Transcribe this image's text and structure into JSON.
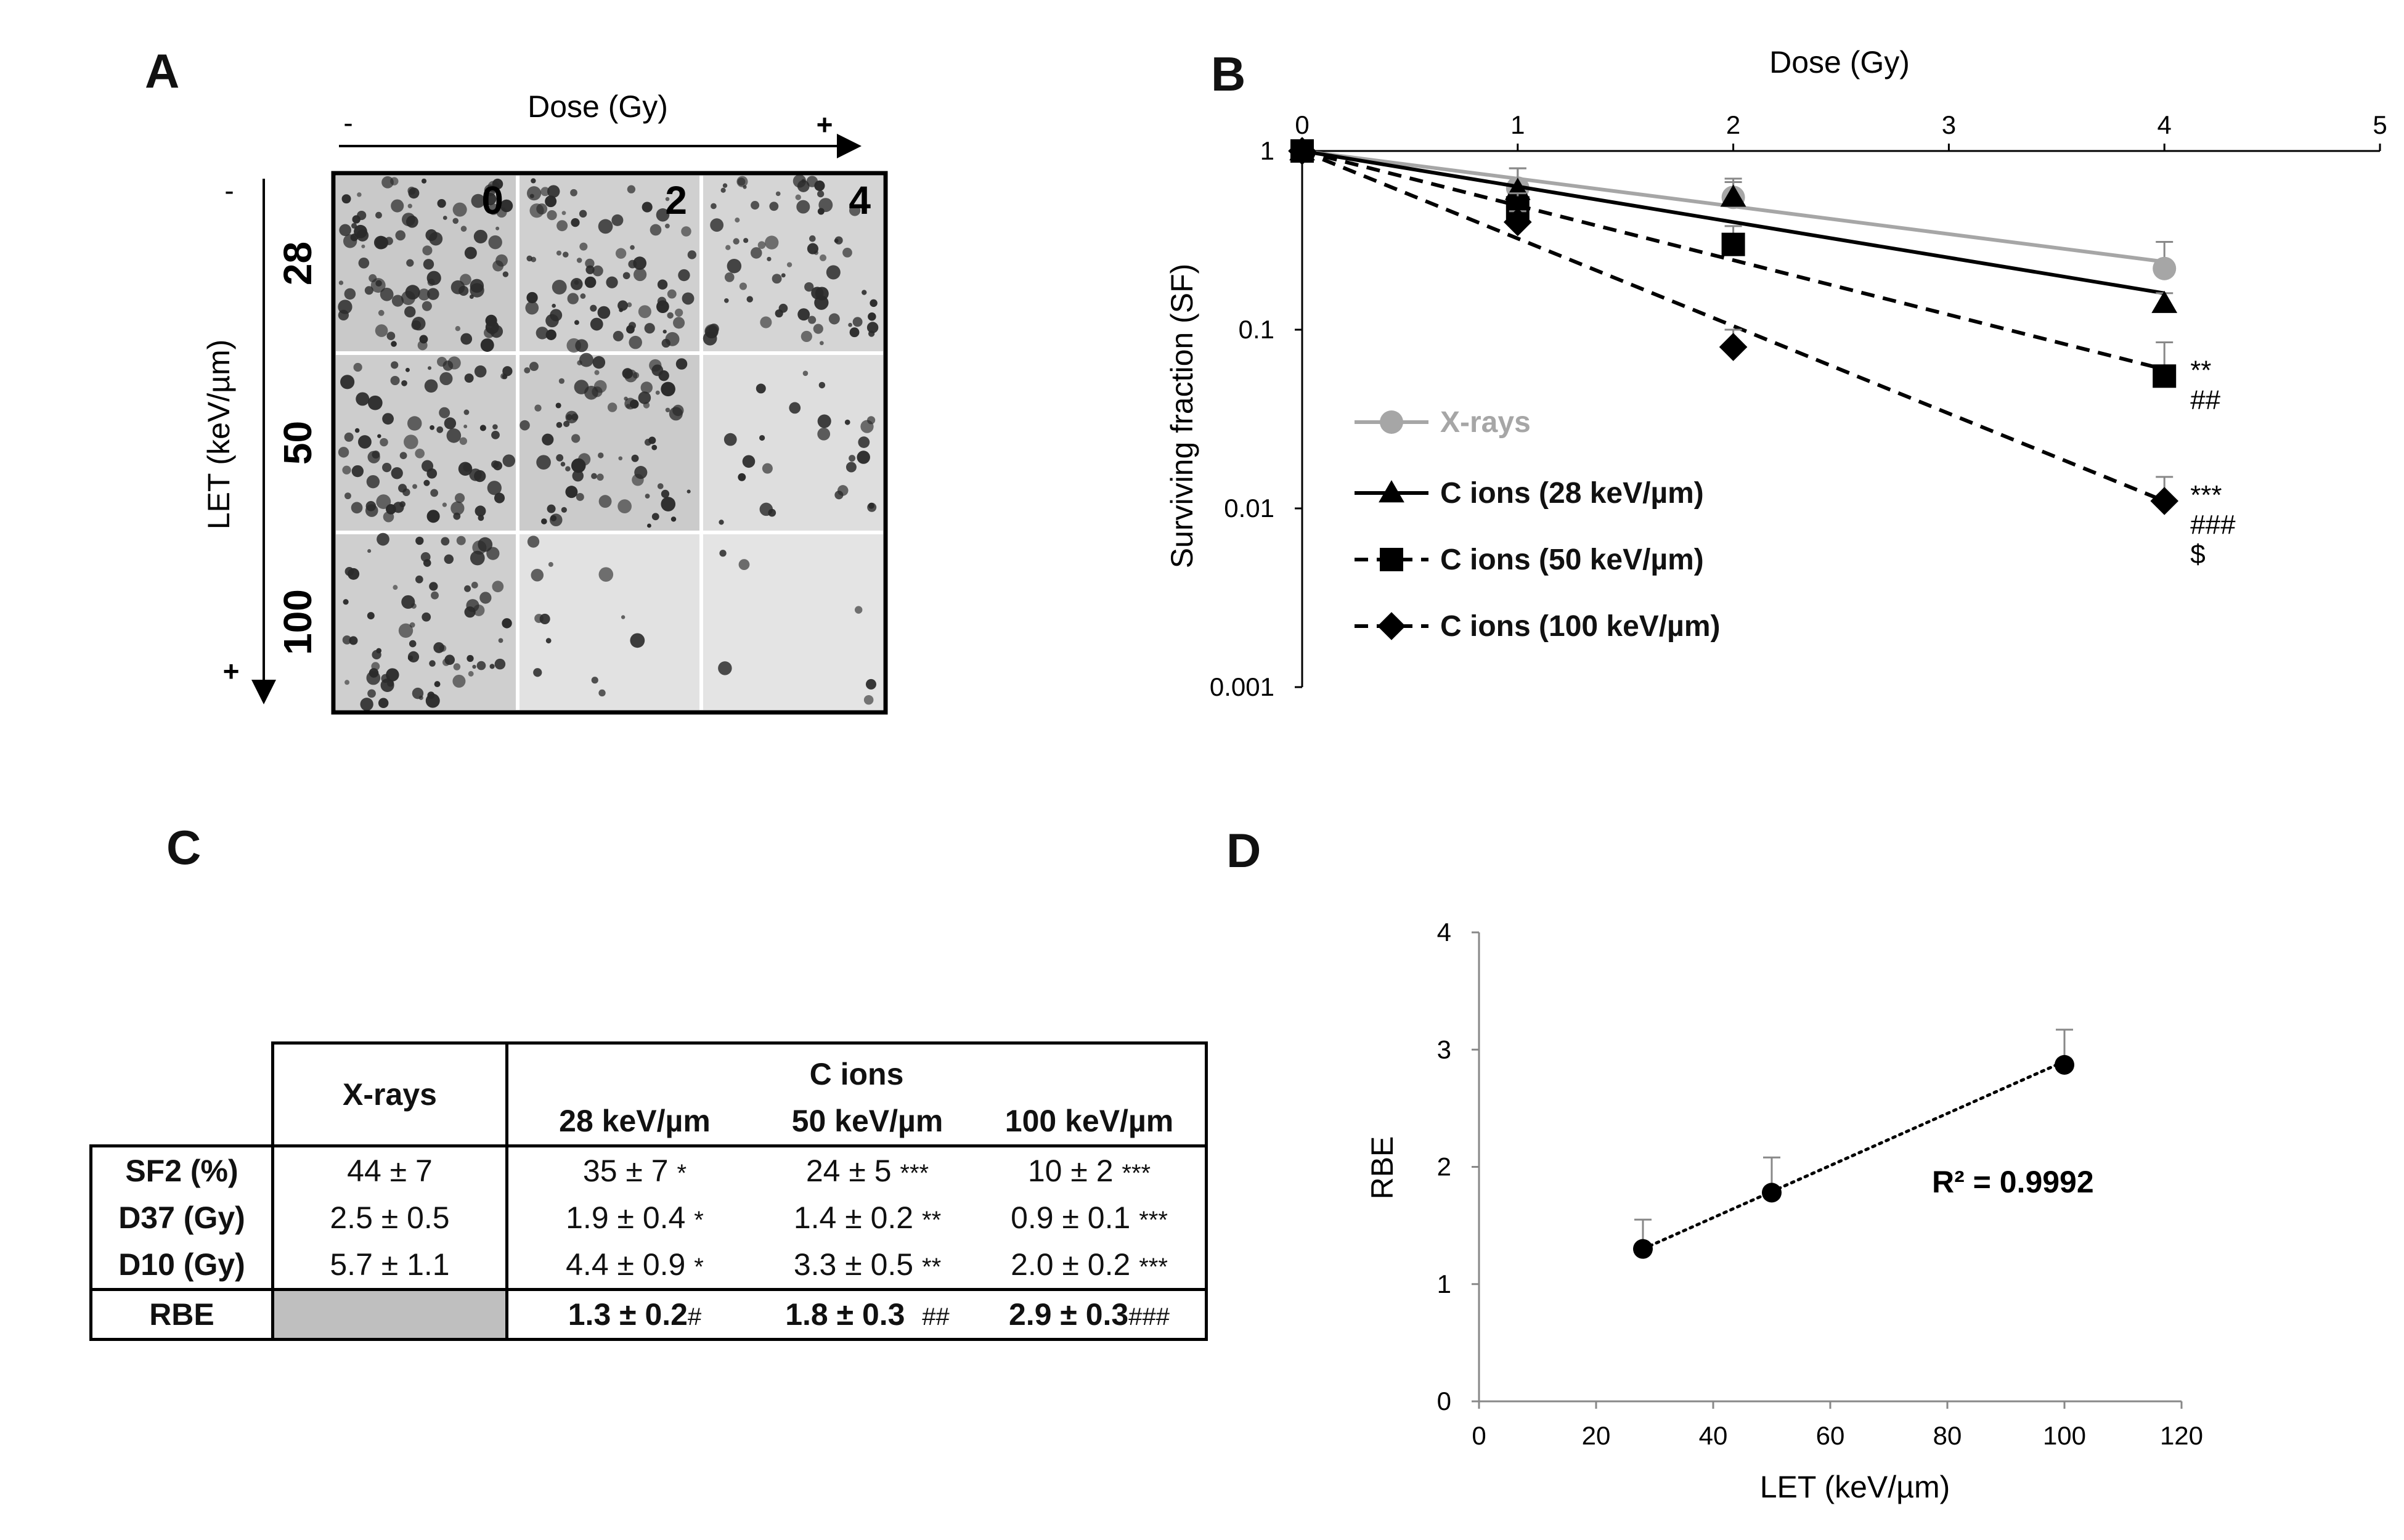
{
  "panel_letters": {
    "a": "A",
    "b": "B",
    "c": "C",
    "d": "D"
  },
  "panelA": {
    "dose_label": "Dose (Gy)",
    "dose_minus": "-",
    "dose_plus": "+",
    "let_label": "LET (keV/µm)",
    "let_minus": "-",
    "let_plus": "+",
    "dose_columns": [
      "0",
      "2",
      "4"
    ],
    "let_rows": [
      "28",
      "50",
      "100"
    ]
  },
  "chart_data": [
    {
      "type": "line",
      "panel": "B",
      "xlabel": "Dose (Gy)",
      "ylabel": "Surviving fraction (SF)",
      "x_ticks": [
        "0",
        "1",
        "2",
        "3",
        "4",
        "5"
      ],
      "xlim": [
        0,
        5
      ],
      "y_ticks": [
        "1",
        "0.1",
        "0.01",
        "0.001"
      ],
      "ylim": [
        0.001,
        1
      ],
      "y_scale": "log",
      "legend_position": "bottom-left",
      "series": [
        {
          "name": "X-rays",
          "color": "#a6a6a6",
          "marker": "circle",
          "dash": "solid",
          "x": [
            0,
            1,
            2,
            4
          ],
          "y": [
            1,
            0.62,
            0.55,
            0.22
          ],
          "err": [
            0,
            0.18,
            0.15,
            0.09
          ],
          "fit_end": 0.24,
          "annotations": []
        },
        {
          "name": "C ions (28 keV/µm)",
          "color": "#000000",
          "marker": "triangle",
          "dash": "solid",
          "x": [
            0,
            1,
            2,
            4
          ],
          "y": [
            1,
            0.6,
            0.55,
            0.14
          ],
          "err": [
            0,
            0.2,
            0.12,
            0.02
          ],
          "fit_end": 0.16,
          "annotations": []
        },
        {
          "name": "C ions (50 keV/µm)",
          "color": "#000000",
          "marker": "square",
          "dash": "dashed",
          "x": [
            0,
            1,
            2,
            4
          ],
          "y": [
            1,
            0.48,
            0.3,
            0.055
          ],
          "err": [
            0,
            0.1,
            0.08,
            0.03
          ],
          "fit_end": 0.06,
          "annotations": [
            "**",
            "##"
          ]
        },
        {
          "name": "C ions (100 keV/µm)",
          "color": "#000000",
          "marker": "diamond",
          "dash": "dashed",
          "x": [
            0,
            1,
            2,
            4
          ],
          "y": [
            1,
            0.4,
            0.08,
            0.011
          ],
          "err": [
            0,
            0.06,
            0.02,
            0.004
          ],
          "fit_end": 0.011,
          "annotations": [
            "***",
            "###",
            "$"
          ]
        }
      ]
    },
    {
      "type": "scatter",
      "panel": "D",
      "xlabel": "LET (keV/µm)",
      "ylabel": "RBE",
      "x_ticks": [
        "0",
        "20",
        "40",
        "60",
        "80",
        "100",
        "120"
      ],
      "xlim": [
        0,
        120
      ],
      "y_ticks": [
        "0",
        "1",
        "2",
        "3",
        "4"
      ],
      "ylim": [
        0,
        4
      ],
      "points": [
        {
          "x": 28,
          "y": 1.3,
          "err": 0.25
        },
        {
          "x": 50,
          "y": 1.78,
          "err": 0.3
        },
        {
          "x": 100,
          "y": 2.87,
          "err": 0.3
        }
      ],
      "trendline": {
        "x": [
          28,
          100
        ],
        "y": [
          1.3,
          2.9
        ],
        "style": "dotted"
      },
      "r2_label": "R² = 0.9992"
    }
  ],
  "table": {
    "col_xrays": "X-rays",
    "col_cions": "C ions",
    "sub_cols": [
      "28 keV/µm",
      "50 keV/µm",
      "100 keV/µm"
    ],
    "rows": [
      {
        "label": "SF2 (%)",
        "x": "44 ± 7",
        "c28": "35 ± 7",
        "c28s": "*",
        "c50": "24 ± 5",
        "c50s": "***",
        "c100": "10 ± 2",
        "c100s": "***"
      },
      {
        "label": "D37 (Gy)",
        "x": "2.5 ± 0.5",
        "c28": "1.9 ± 0.4",
        "c28s": "*",
        "c50": "1.4 ± 0.2",
        "c50s": "**",
        "c100": "0.9 ± 0.1",
        "c100s": "***"
      },
      {
        "label": "D10 (Gy)",
        "x": "5.7 ± 1.1",
        "c28": "4.4 ± 0.9",
        "c28s": "*",
        "c50": "3.3 ± 0.5",
        "c50s": "**",
        "c100": "2.0 ± 0.2",
        "c100s": "***"
      },
      {
        "label": "RBE",
        "x": "",
        "c28": "1.3 ± 0.2",
        "c28s": "#",
        "c50": "1.8 ± 0.3",
        "c50s": "##",
        "c100": "2.9 ± 0.3",
        "c100s": "###"
      }
    ]
  },
  "colors": {
    "xray_gray": "#a6a6a6",
    "table_shade": "#bfbfbf"
  }
}
